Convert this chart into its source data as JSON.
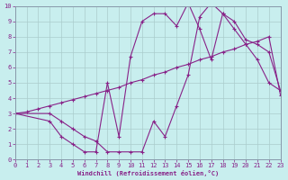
{
  "bg_color": "#c8eeee",
  "line_color": "#882288",
  "grid_color": "#aacccc",
  "xlabel": "Windchill (Refroidissement éolien,°C)",
  "xlim": [
    0,
    23
  ],
  "ylim": [
    0,
    10
  ],
  "xticks": [
    0,
    1,
    2,
    3,
    4,
    5,
    6,
    7,
    8,
    9,
    10,
    11,
    12,
    13,
    14,
    15,
    16,
    17,
    18,
    19,
    20,
    21,
    22,
    23
  ],
  "yticks": [
    0,
    1,
    2,
    3,
    4,
    5,
    6,
    7,
    8,
    9,
    10
  ],
  "line1_x": [
    0,
    1,
    2,
    3,
    4,
    5,
    6,
    7,
    8,
    9,
    10,
    11,
    12,
    13,
    14,
    15,
    16,
    17,
    18,
    19,
    20,
    21,
    22,
    23
  ],
  "line1_y": [
    3.0,
    3.1,
    3.3,
    3.5,
    3.7,
    3.9,
    4.1,
    4.3,
    4.5,
    4.7,
    5.0,
    5.2,
    5.5,
    5.7,
    6.0,
    6.2,
    6.5,
    6.7,
    7.0,
    7.2,
    7.5,
    7.7,
    8.0,
    4.2
  ],
  "line2_x": [
    0,
    3,
    4,
    5,
    6,
    7,
    8,
    9,
    10,
    11,
    12,
    13,
    14,
    15,
    16,
    17,
    18,
    19,
    20,
    21,
    22,
    23
  ],
  "line2_y": [
    3.0,
    2.5,
    1.5,
    1.0,
    0.5,
    0.5,
    5.0,
    1.5,
    6.7,
    9.0,
    9.5,
    9.5,
    8.7,
    10.2,
    8.5,
    6.5,
    9.5,
    9.0,
    7.8,
    7.5,
    7.0,
    4.5
  ],
  "line3_x": [
    0,
    3,
    4,
    5,
    6,
    7,
    8,
    9,
    10,
    11,
    12,
    13,
    14,
    15,
    16,
    17,
    18,
    19,
    20,
    21,
    22,
    23
  ],
  "line3_y": [
    3.0,
    3.0,
    2.5,
    2.0,
    1.5,
    1.2,
    0.5,
    0.5,
    0.5,
    0.5,
    2.5,
    1.5,
    3.5,
    5.5,
    9.3,
    10.2,
    9.5,
    8.5,
    7.5,
    6.5,
    5.0,
    4.5
  ]
}
